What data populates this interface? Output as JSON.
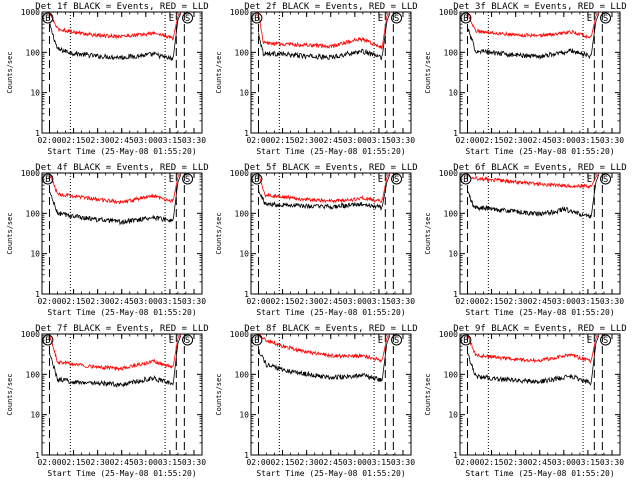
{
  "figure": {
    "start_time_label": "Start Time (25-May-08 01:55:20)",
    "ylabel": "Counts/sec",
    "xticks": [
      "02:00",
      "02:15",
      "02:30",
      "02:45",
      "03:00",
      "03:15",
      "03:30"
    ],
    "yticks": [
      "1",
      "10",
      "100",
      "1000"
    ],
    "marker_labels": [
      "B",
      "E",
      "S"
    ],
    "colors": {
      "events": "#000000",
      "lld": "#ff0000"
    }
  },
  "chart_data": [
    {
      "type": "line",
      "title": "Det 1f BLACK = Events, RED = LLD",
      "xlabel": "Start Time (25-May-08 01:55:20)",
      "ylabel": "Counts/sec",
      "xlim": [
        "01:55:20",
        "03:35:00"
      ],
      "ylim": [
        1,
        1000
      ],
      "yscale": "log",
      "vlines_dashed": [
        "02:00",
        "03:19",
        "03:24"
      ],
      "vlines_dotted": [
        "02:13",
        "03:12"
      ],
      "markers": [
        {
          "label": "B",
          "x": "01:59"
        },
        {
          "label": "E",
          "x": "03:16"
        },
        {
          "label": "S",
          "x": "03:26"
        }
      ],
      "series": [
        {
          "name": "Events",
          "color": "#000000",
          "x": [
            "02:00",
            "02:05",
            "02:15",
            "02:30",
            "02:45",
            "03:00",
            "03:05",
            "03:12",
            "03:17",
            "03:20",
            "03:22"
          ],
          "values": [
            500,
            120,
            95,
            80,
            75,
            85,
            90,
            75,
            68,
            650,
            950
          ]
        },
        {
          "name": "LLD",
          "color": "#ff0000",
          "x": [
            "02:00",
            "02:05",
            "02:15",
            "02:30",
            "02:45",
            "03:00",
            "03:05",
            "03:12",
            "03:17",
            "03:20",
            "03:22"
          ],
          "values": [
            950,
            380,
            320,
            260,
            250,
            280,
            300,
            260,
            220,
            800,
            1000
          ]
        }
      ]
    },
    {
      "type": "line",
      "title": "Det 2f BLACK = Events, RED = LLD",
      "xlabel": "Start Time (25-May-08 01:55:20)",
      "ylabel": "Counts/sec",
      "xlim": [
        "01:55:20",
        "03:35:00"
      ],
      "ylim": [
        1,
        1000
      ],
      "yscale": "log",
      "vlines_dashed": [
        "02:00",
        "03:19",
        "03:24"
      ],
      "vlines_dotted": [
        "02:13",
        "03:12"
      ],
      "markers": [
        {
          "label": "B",
          "x": "01:59"
        },
        {
          "label": "E",
          "x": "03:16"
        },
        {
          "label": "S",
          "x": "03:26"
        }
      ],
      "series": [
        {
          "name": "Events",
          "color": "#000000",
          "x": [
            "02:00",
            "02:03",
            "02:15",
            "02:30",
            "02:45",
            "03:00",
            "03:05",
            "03:12",
            "03:17",
            "03:20",
            "03:22"
          ],
          "values": [
            300,
            95,
            90,
            80,
            75,
            100,
            105,
            85,
            75,
            600,
            950
          ]
        },
        {
          "name": "LLD",
          "color": "#ff0000",
          "x": [
            "02:00",
            "02:03",
            "02:15",
            "02:30",
            "02:45",
            "03:00",
            "03:05",
            "03:12",
            "03:17",
            "03:20",
            "03:22"
          ],
          "values": [
            950,
            170,
            160,
            150,
            140,
            200,
            210,
            160,
            130,
            800,
            1000
          ]
        }
      ]
    },
    {
      "type": "line",
      "title": "Det 3f BLACK = Events, RED = LLD",
      "xlabel": "Start Time (25-May-08 01:55:20)",
      "ylabel": "Counts/sec",
      "xlim": [
        "01:55:20",
        "03:35:00"
      ],
      "ylim": [
        1,
        1000
      ],
      "yscale": "log",
      "vlines_dashed": [
        "02:00",
        "03:19",
        "03:24"
      ],
      "vlines_dotted": [
        "02:13",
        "03:12"
      ],
      "markers": [
        {
          "label": "B",
          "x": "01:59"
        },
        {
          "label": "E",
          "x": "03:16"
        },
        {
          "label": "S",
          "x": "03:26"
        }
      ],
      "series": [
        {
          "name": "Events",
          "color": "#000000",
          "x": [
            "02:00",
            "02:05",
            "02:15",
            "02:30",
            "02:45",
            "03:00",
            "03:05",
            "03:12",
            "03:17",
            "03:20",
            "03:22"
          ],
          "values": [
            400,
            110,
            100,
            85,
            80,
            100,
            110,
            90,
            80,
            600,
            950
          ]
        },
        {
          "name": "LLD",
          "color": "#ff0000",
          "x": [
            "02:00",
            "02:05",
            "02:15",
            "02:30",
            "02:45",
            "03:00",
            "03:05",
            "03:12",
            "03:17",
            "03:20",
            "03:22"
          ],
          "values": [
            950,
            340,
            310,
            270,
            260,
            300,
            320,
            260,
            230,
            800,
            1000
          ]
        }
      ]
    },
    {
      "type": "line",
      "title": "Det 4f BLACK = Events, RED = LLD",
      "xlabel": "Start Time (25-May-08 01:55:20)",
      "ylabel": "Counts/sec",
      "xlim": [
        "01:55:20",
        "03:35:00"
      ],
      "ylim": [
        1,
        1000
      ],
      "yscale": "log",
      "vlines_dashed": [
        "02:00",
        "03:19",
        "03:24"
      ],
      "vlines_dotted": [
        "02:13",
        "03:12"
      ],
      "markers": [
        {
          "label": "B",
          "x": "01:59"
        },
        {
          "label": "E",
          "x": "03:16"
        },
        {
          "label": "S",
          "x": "03:26"
        }
      ],
      "series": [
        {
          "name": "Events",
          "color": "#000000",
          "x": [
            "02:00",
            "02:05",
            "02:15",
            "02:30",
            "02:45",
            "03:00",
            "03:05",
            "03:12",
            "03:17",
            "03:20",
            "03:22"
          ],
          "values": [
            350,
            100,
            85,
            70,
            60,
            75,
            80,
            70,
            65,
            600,
            950
          ]
        },
        {
          "name": "LLD",
          "color": "#ff0000",
          "x": [
            "02:00",
            "02:05",
            "02:15",
            "02:30",
            "02:45",
            "03:00",
            "03:05",
            "03:12",
            "03:17",
            "03:20",
            "03:22"
          ],
          "values": [
            950,
            300,
            270,
            220,
            190,
            250,
            270,
            220,
            200,
            800,
            1000
          ]
        }
      ]
    },
    {
      "type": "line",
      "title": "Det 5f BLACK = Events, RED = LLD",
      "xlabel": "Start Time (25-May-08 01:55:20)",
      "ylabel": "Counts/sec",
      "xlim": [
        "01:55:20",
        "03:35:00"
      ],
      "ylim": [
        1,
        1000
      ],
      "yscale": "log",
      "vlines_dashed": [
        "02:00",
        "03:19",
        "03:24"
      ],
      "vlines_dotted": [
        "02:13",
        "03:12"
      ],
      "markers": [
        {
          "label": "B",
          "x": "01:59"
        },
        {
          "label": "E",
          "x": "03:16"
        },
        {
          "label": "S",
          "x": "03:26"
        }
      ],
      "series": [
        {
          "name": "Events",
          "color": "#000000",
          "x": [
            "02:00",
            "02:04",
            "02:15",
            "02:30",
            "02:45",
            "03:00",
            "03:05",
            "03:12",
            "03:17",
            "03:20",
            "03:22"
          ],
          "values": [
            400,
            170,
            165,
            150,
            145,
            160,
            170,
            150,
            140,
            600,
            950
          ]
        },
        {
          "name": "LLD",
          "color": "#ff0000",
          "x": [
            "02:00",
            "02:04",
            "02:15",
            "02:30",
            "02:45",
            "03:00",
            "03:05",
            "03:12",
            "03:17",
            "03:20",
            "03:22"
          ],
          "values": [
            950,
            280,
            260,
            220,
            200,
            220,
            240,
            210,
            200,
            800,
            1000
          ]
        }
      ]
    },
    {
      "type": "line",
      "title": "Det 6f BLACK = Events, RED = LLD",
      "xlabel": "Start Time (25-May-08 01:55:20)",
      "ylabel": "Counts/sec",
      "xlim": [
        "01:55:20",
        "03:35:00"
      ],
      "ylim": [
        1,
        1000
      ],
      "yscale": "log",
      "vlines_dashed": [
        "02:00",
        "03:19",
        "03:24"
      ],
      "vlines_dotted": [
        "02:13",
        "03:12"
      ],
      "markers": [
        {
          "label": "B",
          "x": "01:59"
        },
        {
          "label": "E",
          "x": "03:16"
        },
        {
          "label": "S",
          "x": "03:26"
        }
      ],
      "series": [
        {
          "name": "Events",
          "color": "#000000",
          "x": [
            "02:00",
            "02:04",
            "02:15",
            "02:30",
            "02:45",
            "02:55",
            "03:00",
            "03:05",
            "03:12",
            "03:17",
            "03:20",
            "03:22"
          ],
          "values": [
            350,
            140,
            130,
            110,
            95,
            110,
            130,
            110,
            90,
            80,
            600,
            950
          ]
        },
        {
          "name": "LLD",
          "color": "#ff0000",
          "x": [
            "02:00",
            "02:04",
            "02:15",
            "02:30",
            "02:45",
            "02:55",
            "03:00",
            "03:05",
            "03:12",
            "03:17",
            "03:20",
            "03:22"
          ],
          "values": [
            950,
            750,
            680,
            600,
            520,
            500,
            480,
            470,
            480,
            450,
            800,
            1000
          ]
        }
      ]
    },
    {
      "type": "line",
      "title": "Det 7f BLACK = Events, RED = LLD",
      "xlabel": "Start Time (25-May-08 01:55:20)",
      "ylabel": "Counts/sec",
      "xlim": [
        "01:55:20",
        "03:35:00"
      ],
      "ylim": [
        1,
        1000
      ],
      "yscale": "log",
      "vlines_dashed": [
        "02:00",
        "03:19",
        "03:24"
      ],
      "vlines_dotted": [
        "02:13",
        "03:12"
      ],
      "markers": [
        {
          "label": "B",
          "x": "01:59"
        },
        {
          "label": "E",
          "x": "03:16"
        },
        {
          "label": "S",
          "x": "03:26"
        }
      ],
      "series": [
        {
          "name": "Events",
          "color": "#000000",
          "x": [
            "02:00",
            "02:05",
            "02:15",
            "02:30",
            "02:45",
            "03:00",
            "03:05",
            "03:12",
            "03:17",
            "03:20",
            "03:22"
          ],
          "values": [
            350,
            75,
            65,
            60,
            55,
            75,
            80,
            65,
            55,
            600,
            950
          ]
        },
        {
          "name": "LLD",
          "color": "#ff0000",
          "x": [
            "02:00",
            "02:05",
            "02:15",
            "02:30",
            "02:45",
            "03:00",
            "03:05",
            "03:12",
            "03:17",
            "03:20",
            "03:22"
          ],
          "values": [
            950,
            200,
            180,
            150,
            140,
            190,
            210,
            170,
            150,
            800,
            1000
          ]
        }
      ]
    },
    {
      "type": "line",
      "title": "Det 8f BLACK = Events, RED = LLD",
      "xlabel": "Start Time (25-May-08 01:55:20)",
      "ylabel": "Counts/sec",
      "xlim": [
        "01:55:20",
        "03:35:00"
      ],
      "ylim": [
        1,
        1000
      ],
      "yscale": "log",
      "vlines_dashed": [
        "02:00",
        "03:19",
        "03:24"
      ],
      "vlines_dotted": [
        "02:13",
        "03:12"
      ],
      "markers": [
        {
          "label": "B",
          "x": "01:59"
        },
        {
          "label": "E",
          "x": "03:16"
        },
        {
          "label": "S",
          "x": "03:26"
        }
      ],
      "series": [
        {
          "name": "Events",
          "color": "#000000",
          "x": [
            "02:00",
            "02:05",
            "02:15",
            "02:30",
            "02:45",
            "03:00",
            "03:05",
            "03:12",
            "03:17",
            "03:20",
            "03:22"
          ],
          "values": [
            400,
            170,
            130,
            100,
            85,
            90,
            95,
            80,
            70,
            600,
            950
          ]
        },
        {
          "name": "LLD",
          "color": "#ff0000",
          "x": [
            "02:00",
            "02:05",
            "02:15",
            "02:30",
            "02:45",
            "03:00",
            "03:05",
            "03:12",
            "03:17",
            "03:20",
            "03:22"
          ],
          "values": [
            950,
            700,
            500,
            360,
            290,
            280,
            290,
            250,
            220,
            800,
            1000
          ]
        }
      ]
    },
    {
      "type": "line",
      "title": "Det 9f BLACK = Events, RED = LLD",
      "xlabel": "Start Time (25-May-08 01:55:20)",
      "ylabel": "Counts/sec",
      "xlim": [
        "01:55:20",
        "03:35:00"
      ],
      "ylim": [
        1,
        1000
      ],
      "yscale": "log",
      "vlines_dashed": [
        "02:00",
        "03:19",
        "03:24"
      ],
      "vlines_dotted": [
        "02:13",
        "03:12"
      ],
      "markers": [
        {
          "label": "B",
          "x": "01:59"
        },
        {
          "label": "E",
          "x": "03:16"
        },
        {
          "label": "S",
          "x": "03:26"
        }
      ],
      "series": [
        {
          "name": "Events",
          "color": "#000000",
          "x": [
            "02:00",
            "02:05",
            "02:15",
            "02:30",
            "02:45",
            "03:00",
            "03:05",
            "03:12",
            "03:17",
            "03:20",
            "03:22"
          ],
          "values": [
            350,
            90,
            80,
            70,
            65,
            85,
            90,
            70,
            60,
            600,
            950
          ]
        },
        {
          "name": "LLD",
          "color": "#ff0000",
          "x": [
            "02:00",
            "02:05",
            "02:15",
            "02:30",
            "02:45",
            "03:00",
            "03:05",
            "03:12",
            "03:17",
            "03:20",
            "03:22"
          ],
          "values": [
            950,
            300,
            270,
            230,
            220,
            280,
            300,
            240,
            210,
            800,
            1000
          ]
        }
      ]
    }
  ]
}
